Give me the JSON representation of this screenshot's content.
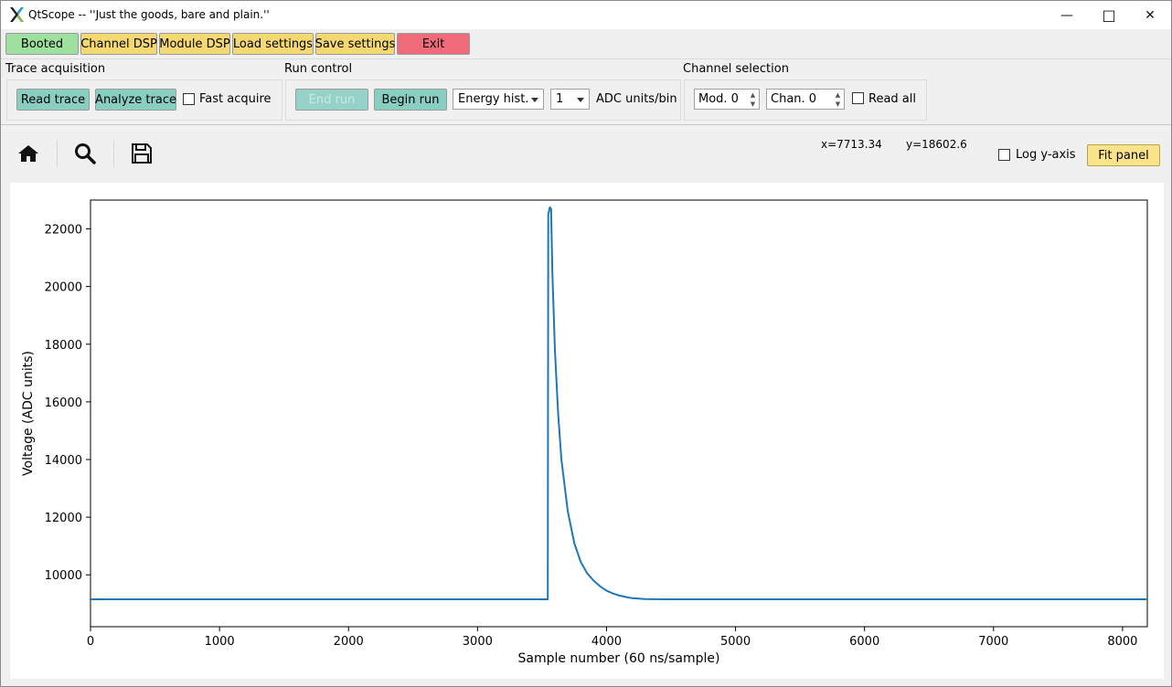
{
  "window": {
    "title": "QtScope -- ''Just the goods, bare and plain.''",
    "minimize_glyph": "—",
    "maximize_glyph": "□",
    "close_glyph": "✕"
  },
  "toolbar": {
    "booted": "Booted",
    "channel_dsp": "Channel DSP",
    "module_dsp": "Module DSP",
    "load_settings": "Load settings",
    "save_settings": "Save settings",
    "exit": "Exit"
  },
  "trace_acquisition": {
    "title": "Trace acquisition",
    "read_trace": "Read trace",
    "analyze_trace": "Analyze trace",
    "fast_acquire": "Fast acquire",
    "fast_acquire_checked": false
  },
  "run_control": {
    "title": "Run control",
    "end_run": "End run",
    "begin_run": "Begin run",
    "run_type": "Energy hist.",
    "bin_value": "1",
    "bin_units": "ADC units/bin"
  },
  "channel_selection": {
    "title": "Channel selection",
    "module": "Mod. 0",
    "channel": "Chan. 0",
    "read_all": "Read all",
    "read_all_checked": false
  },
  "plot_toolbar": {
    "home_icon": "home-icon",
    "zoom_icon": "magnifier-icon",
    "save_icon": "floppy-save-icon",
    "x_readout": "x=7713.34",
    "y_readout": "y=18602.6",
    "log_y_axis": "Log y-axis",
    "log_y_checked": false,
    "fit_panel": "Fit panel"
  },
  "colors": {
    "trace": "#1f77b4",
    "booted": "#9ee09e",
    "settings": "#f5d872",
    "exit": "#ef6b7a",
    "teal": "#88cfc2"
  },
  "chart_data": {
    "type": "line",
    "title": "",
    "xlabel": "Sample number (60 ns/sample)",
    "ylabel": "Voltage (ADC units)",
    "xlim": [
      0,
      8192
    ],
    "ylim": [
      8200,
      23000
    ],
    "xticks": [
      0,
      1000,
      2000,
      3000,
      4000,
      5000,
      6000,
      7000,
      8000
    ],
    "yticks": [
      10000,
      12000,
      14000,
      16000,
      18000,
      20000,
      22000
    ],
    "grid": false,
    "series": [
      {
        "x": [
          0,
          500,
          1000,
          1500,
          2000,
          2500,
          3000,
          3500,
          3545,
          3548,
          3560,
          3570,
          3580,
          3600,
          3625,
          3650,
          3700,
          3750,
          3800,
          3850,
          3900,
          3950,
          4000,
          4050,
          4100,
          4150,
          4200,
          4300,
          4500,
          5000,
          6000,
          7000,
          8192
        ],
        "y": [
          9150,
          9150,
          9150,
          9150,
          9150,
          9150,
          9150,
          9150,
          9150,
          22500,
          22750,
          22700,
          20500,
          17800,
          15600,
          14000,
          12200,
          11100,
          10450,
          10050,
          9800,
          9600,
          9450,
          9350,
          9280,
          9230,
          9190,
          9160,
          9150,
          9150,
          9150,
          9150,
          9150
        ]
      }
    ]
  }
}
